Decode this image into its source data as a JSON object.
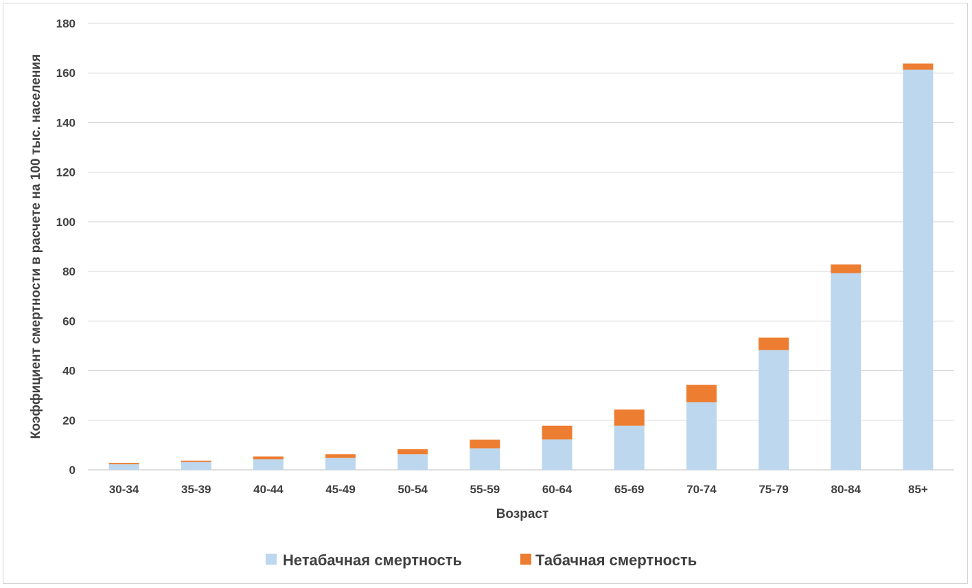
{
  "chart_data": {
    "type": "bar",
    "stacked": true,
    "categories": [
      "30-34",
      "35-39",
      "40-44",
      "45-49",
      "50-54",
      "55-59",
      "60-64",
      "65-69",
      "70-74",
      "75-79",
      "80-84",
      "85+"
    ],
    "series": [
      {
        "name": "Нетабачная смертность",
        "color": "#bdd7ee",
        "values": [
          2.3,
          3.2,
          4.3,
          4.8,
          6.3,
          8.7,
          12.3,
          17.8,
          27.3,
          48.3,
          79.3,
          161.3
        ]
      },
      {
        "name": "Табачная смертность",
        "color": "#ed7d31",
        "values": [
          0.5,
          0.5,
          1.1,
          1.5,
          2.0,
          3.5,
          5.5,
          6.5,
          7.0,
          5.0,
          3.5,
          2.5
        ]
      }
    ],
    "title": "",
    "xlabel": "Возраст",
    "ylabel": "Коэффициент смертности  в расчете  на 100 тыс. населения",
    "ylim": [
      0,
      180
    ],
    "yticks": [
      "0",
      "20",
      "40",
      "60",
      "80",
      "100",
      "120",
      "140",
      "160",
      "180"
    ],
    "grid": true,
    "legend_position": "bottom"
  },
  "colors": {
    "grid": "#d9d9d9",
    "text": "#404040"
  }
}
